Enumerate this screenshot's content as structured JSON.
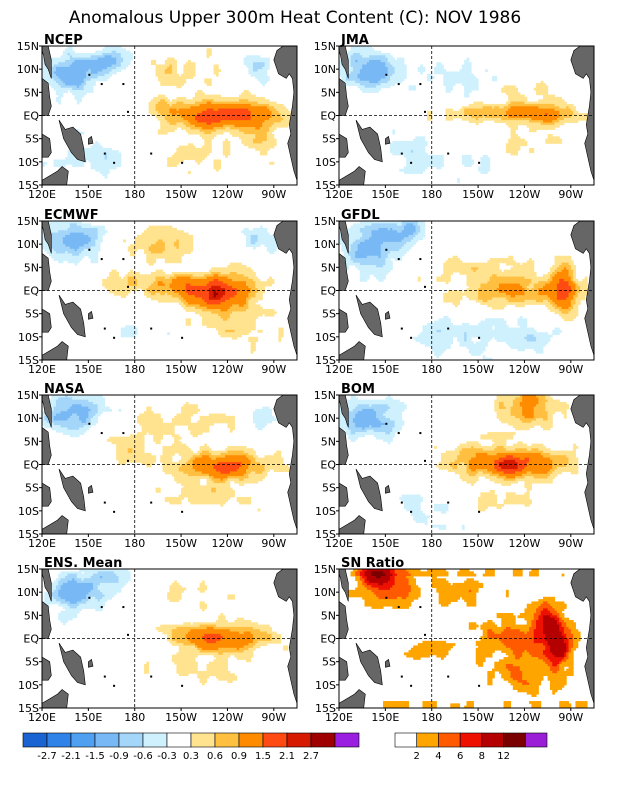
{
  "title": "Anomalous Upper 300m Heat Content (C): NOV 1986",
  "colors": {
    "anomaly": [
      "#1a64d2",
      "#2f82e8",
      "#4fa0f0",
      "#78b8f4",
      "#a4d6fa",
      "#cff1fd",
      "#ffffff",
      "#ffe38e",
      "#ffbf40",
      "#ff8c00",
      "#ff4a14",
      "#d61a00",
      "#9e0000",
      "#9a1fe0"
    ],
    "sn": [
      "#ffffff",
      "#ffa500",
      "#ff5a00",
      "#ee1000",
      "#b40000",
      "#7a0000",
      "#9c1fd8"
    ],
    "land": "#666666"
  },
  "chart_data": [
    {
      "type": "heatmap",
      "name": "NCEP",
      "title": "NCEP",
      "x_ticks": [
        "120E",
        "150E",
        "180",
        "150W",
        "120W",
        "90W"
      ],
      "y_ticks": [
        "15N",
        "10N",
        "5N",
        "EQ",
        "5S",
        "10S",
        "15S"
      ],
      "features": [
        {
          "lon": 240,
          "lat": 0.5,
          "wx": 28,
          "wy": 3,
          "amp": 1.7
        },
        {
          "lon": 222,
          "lat": -1,
          "wx": 20,
          "wy": 2.5,
          "amp": 0.6
        },
        {
          "lon": 200,
          "lat": 2,
          "wx": 12,
          "wy": 2,
          "amp": 0.5
        },
        {
          "lon": 262,
          "lat": -4,
          "wx": 10,
          "wy": 5,
          "amp": 0.7
        },
        {
          "lon": 215,
          "lat": -8,
          "wx": 30,
          "wy": 4,
          "amp": 0.4
        },
        {
          "lon": 210,
          "lat": 10,
          "wx": 30,
          "wy": 4,
          "amp": 0.4
        },
        {
          "lon": 140,
          "lat": 9,
          "wx": 18,
          "wy": 4,
          "amp": -1.3
        },
        {
          "lon": 165,
          "lat": 12,
          "wx": 14,
          "wy": 3,
          "amp": -0.8
        },
        {
          "lon": 155,
          "lat": -9,
          "wx": 30,
          "wy": 4,
          "amp": -0.45
        },
        {
          "lon": 260,
          "lat": 10,
          "wx": 12,
          "wy": 3,
          "amp": -0.5
        },
        {
          "lon": 210,
          "lat": -5,
          "wx": 10,
          "wy": 2,
          "amp": -0.45
        }
      ]
    },
    {
      "type": "heatmap",
      "name": "JMA",
      "title": "JMA",
      "x_ticks": [
        "120E",
        "150E",
        "180",
        "150W",
        "120W",
        "90W"
      ],
      "y_ticks": [
        "15N",
        "10N",
        "5N",
        "EQ",
        "5S",
        "10S",
        "15S"
      ],
      "features": [
        {
          "lon": 235,
          "lat": 0.5,
          "wx": 42,
          "wy": 2.2,
          "amp": 1.1
        },
        {
          "lon": 255,
          "lat": 0,
          "wx": 10,
          "wy": 2,
          "amp": 0.7
        },
        {
          "lon": 240,
          "lat": 6,
          "wx": 25,
          "wy": 3,
          "amp": 0.35
        },
        {
          "lon": 240,
          "lat": -7,
          "wx": 25,
          "wy": 3,
          "amp": 0.35
        },
        {
          "lon": 140,
          "lat": 10,
          "wx": 18,
          "wy": 4,
          "amp": -1.2
        },
        {
          "lon": 200,
          "lat": 8,
          "wx": 30,
          "wy": 4,
          "amp": -0.4
        },
        {
          "lon": 170,
          "lat": -8,
          "wx": 25,
          "wy": 4,
          "amp": -0.45
        },
        {
          "lon": 210,
          "lat": -10,
          "wx": 20,
          "wy": 3,
          "amp": -0.35
        }
      ]
    },
    {
      "type": "heatmap",
      "name": "ECMWF",
      "title": "ECMWF",
      "x_ticks": [
        "120E",
        "150E",
        "180",
        "150W",
        "120W",
        "90W"
      ],
      "y_ticks": [
        "15N",
        "10N",
        "5N",
        "EQ",
        "5S",
        "10S",
        "15S"
      ],
      "features": [
        {
          "lon": 235,
          "lat": -0.5,
          "wx": 22,
          "wy": 4,
          "amp": 1.8
        },
        {
          "lon": 232,
          "lat": -1,
          "wx": 5,
          "wy": 2,
          "amp": 1.0
        },
        {
          "lon": 205,
          "lat": 1,
          "wx": 20,
          "wy": 3,
          "amp": 0.9
        },
        {
          "lon": 195,
          "lat": 10,
          "wx": 18,
          "wy": 3,
          "amp": 0.7
        },
        {
          "lon": 175,
          "lat": 2,
          "wx": 12,
          "wy": 3,
          "amp": 0.5
        },
        {
          "lon": 250,
          "lat": -8,
          "wx": 25,
          "wy": 4,
          "amp": 0.4
        },
        {
          "lon": 140,
          "lat": 11,
          "wx": 20,
          "wy": 4,
          "amp": -1.2
        },
        {
          "lon": 260,
          "lat": 11,
          "wx": 12,
          "wy": 3,
          "amp": -0.6
        },
        {
          "lon": 180,
          "lat": -9,
          "wx": 20,
          "wy": 3,
          "amp": -0.3
        }
      ]
    },
    {
      "type": "heatmap",
      "name": "GFDL",
      "title": "GFDL",
      "x_ticks": [
        "120E",
        "150E",
        "180",
        "150W",
        "120W",
        "90W"
      ],
      "y_ticks": [
        "15N",
        "10N",
        "5N",
        "EQ",
        "5S",
        "10S",
        "15S"
      ],
      "features": [
        {
          "lon": 230,
          "lat": 0,
          "wx": 40,
          "wy": 3,
          "amp": 0.9
        },
        {
          "lon": 265,
          "lat": 0,
          "wx": 8,
          "wy": 5,
          "amp": 1.6
        },
        {
          "lon": 220,
          "lat": 5,
          "wx": 30,
          "wy": 2,
          "amp": 0.4
        },
        {
          "lon": 140,
          "lat": 9,
          "wx": 18,
          "wy": 5,
          "amp": -1.2
        },
        {
          "lon": 165,
          "lat": 13,
          "wx": 14,
          "wy": 3,
          "amp": -0.9
        },
        {
          "lon": 200,
          "lat": -10,
          "wx": 40,
          "wy": 4,
          "amp": -0.5
        },
        {
          "lon": 250,
          "lat": -10,
          "wx": 20,
          "wy": 3,
          "amp": -0.4
        }
      ]
    },
    {
      "type": "heatmap",
      "name": "NASA",
      "title": "NASA",
      "x_ticks": [
        "120E",
        "150E",
        "180",
        "150W",
        "120W",
        "90W"
      ],
      "y_ticks": [
        "15N",
        "10N",
        "5N",
        "EQ",
        "5S",
        "10S",
        "15S"
      ],
      "features": [
        {
          "lon": 238,
          "lat": 0,
          "wx": 30,
          "wy": 3,
          "amp": 1.2
        },
        {
          "lon": 240,
          "lat": -1,
          "wx": 12,
          "wy": 2,
          "amp": 0.8
        },
        {
          "lon": 210,
          "lat": 9,
          "wx": 30,
          "wy": 4,
          "amp": 0.45
        },
        {
          "lon": 230,
          "lat": -7,
          "wx": 30,
          "wy": 3,
          "amp": 0.45
        },
        {
          "lon": 180,
          "lat": 3,
          "wx": 20,
          "wy": 3,
          "amp": 0.35
        },
        {
          "lon": 140,
          "lat": 11,
          "wx": 20,
          "wy": 4,
          "amp": -1.0
        },
        {
          "lon": 262,
          "lat": 9,
          "wx": 10,
          "wy": 3,
          "amp": -0.45
        }
      ]
    },
    {
      "type": "heatmap",
      "name": "BOM",
      "title": "BOM",
      "x_ticks": [
        "120E",
        "150E",
        "180",
        "150W",
        "120W",
        "90W"
      ],
      "y_ticks": [
        "15N",
        "10N",
        "5N",
        "EQ",
        "5S",
        "10S",
        "15S"
      ],
      "features": [
        {
          "lon": 235,
          "lat": 0,
          "wx": 30,
          "wy": 3,
          "amp": 1.6
        },
        {
          "lon": 230,
          "lat": 0,
          "wx": 8,
          "wy": 2,
          "amp": 0.8
        },
        {
          "lon": 238,
          "lat": 11,
          "wx": 20,
          "wy": 4,
          "amp": 0.9
        },
        {
          "lon": 245,
          "lat": 14,
          "wx": 10,
          "wy": 2,
          "amp": 0.8
        },
        {
          "lon": 205,
          "lat": 2,
          "wx": 20,
          "wy": 3,
          "amp": 0.5
        },
        {
          "lon": 225,
          "lat": -8,
          "wx": 25,
          "wy": 3,
          "amp": 0.4
        },
        {
          "lon": 140,
          "lat": 10,
          "wx": 18,
          "wy": 4,
          "amp": -1.1
        },
        {
          "lon": 180,
          "lat": -10,
          "wx": 25,
          "wy": 4,
          "amp": -0.35
        }
      ]
    },
    {
      "type": "heatmap",
      "name": "ENS. Mean",
      "title": "ENS. Mean",
      "x_ticks": [
        "120E",
        "150E",
        "180",
        "150W",
        "120W",
        "90W"
      ],
      "y_ticks": [
        "15N",
        "10N",
        "5N",
        "EQ",
        "5S",
        "10S",
        "15S"
      ],
      "features": [
        {
          "lon": 235,
          "lat": 0,
          "wx": 30,
          "wy": 3,
          "amp": 1.3
        },
        {
          "lon": 225,
          "lat": 1,
          "wx": 15,
          "wy": 2,
          "amp": 0.4
        },
        {
          "lon": 210,
          "lat": 9,
          "wx": 25,
          "wy": 3,
          "amp": 0.4
        },
        {
          "lon": 225,
          "lat": -7,
          "wx": 30,
          "wy": 3,
          "amp": 0.4
        },
        {
          "lon": 140,
          "lat": 10,
          "wx": 18,
          "wy": 4,
          "amp": -1.1
        },
        {
          "lon": 165,
          "lat": 13,
          "wx": 15,
          "wy": 3,
          "amp": -0.6
        }
      ]
    },
    {
      "type": "heatmap",
      "name": "SN Ratio",
      "title": "SN Ratio",
      "x_ticks": [
        "120E",
        "150E",
        "180",
        "150W",
        "120W",
        "90W"
      ],
      "y_ticks": [
        "15N",
        "10N",
        "5N",
        "EQ",
        "5S",
        "10S",
        "15S"
      ],
      "features": [
        {
          "lon": 150,
          "lat": 11,
          "wx": 18,
          "wy": 4,
          "amp": 6
        },
        {
          "lon": 145,
          "lat": 14,
          "wx": 10,
          "wy": 2,
          "amp": 10
        },
        {
          "lon": 235,
          "lat": 0,
          "wx": 35,
          "wy": 4,
          "amp": 4.5
        },
        {
          "lon": 255,
          "lat": 4,
          "wx": 10,
          "wy": 4,
          "amp": 8
        },
        {
          "lon": 262,
          "lat": -2,
          "wx": 8,
          "wy": 4,
          "amp": 9
        },
        {
          "lon": 240,
          "lat": -8,
          "wx": 20,
          "wy": 4,
          "amp": 4
        },
        {
          "lon": 175,
          "lat": -3,
          "wx": 15,
          "wy": 2,
          "amp": 3
        },
        {
          "lon": 200,
          "lat": 10,
          "wx": 25,
          "wy": 3,
          "amp": 3
        }
      ]
    }
  ],
  "anomaly_colorbar": {
    "levels": [
      "-2.7",
      "-2.1",
      "-1.5",
      "-0.9",
      "-0.6",
      "-0.3",
      "0.3",
      "0.6",
      "0.9",
      "1.5",
      "2.1",
      "2.7"
    ]
  },
  "sn_colorbar": {
    "levels": [
      "2",
      "4",
      "6",
      "8",
      "12"
    ]
  }
}
